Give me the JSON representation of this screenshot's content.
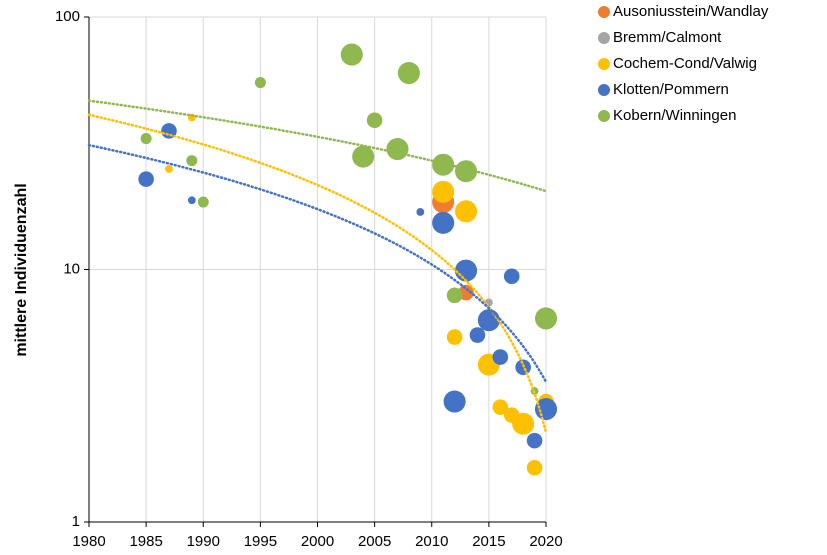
{
  "chart_data": {
    "type": "bubble",
    "y_label": "mittlere Individuenzahl",
    "log_y": true,
    "grid": true,
    "legend": "top-right",
    "xlim": [
      1980,
      2020
    ],
    "xticks": [
      1980,
      1985,
      1990,
      1995,
      2000,
      2005,
      2010,
      2015,
      2020
    ],
    "ylim": [
      1,
      100
    ],
    "yticks": [
      1,
      10,
      100
    ],
    "series": [
      {
        "name": "Ausoniusstein/Wandlay",
        "color": "#ed7d31",
        "trendline": false,
        "x": [
          2011,
          2013
        ],
        "values": [
          18.5,
          8.1
        ],
        "sizes": [
          8,
          4
        ]
      },
      {
        "name": "Bremm/Calmont",
        "color": "#a5a5a5",
        "trendline": false,
        "x": [
          2015
        ],
        "values": [
          7.4
        ],
        "sizes": [
          1
        ]
      },
      {
        "name": "Cochem-Cond/Valwig",
        "color": "#ffc000",
        "trendline": true,
        "x": [
          1987,
          1989,
          2011,
          2013,
          2012,
          2015,
          2016,
          2017,
          2018,
          2019,
          2020
        ],
        "values": [
          25,
          40,
          20.3,
          17,
          5.4,
          4.2,
          2.85,
          2.65,
          2.45,
          1.64,
          3.0
        ],
        "sizes": [
          1,
          1,
          8,
          8,
          4,
          8,
          4,
          4,
          8,
          4,
          4
        ]
      },
      {
        "name": "Klotten/Pommern",
        "color": "#4472c4",
        "trendline": true,
        "x": [
          1985,
          1987,
          1989,
          2009,
          2011,
          2013,
          2017,
          2014,
          2015,
          2016,
          2018,
          2012,
          2019,
          2020
        ],
        "values": [
          22.8,
          35.4,
          18.8,
          16.9,
          15.3,
          9.9,
          9.4,
          5.5,
          6.3,
          4.5,
          4.1,
          3.0,
          2.1,
          2.8
        ],
        "sizes": [
          4,
          4,
          1,
          1,
          8,
          8,
          4,
          4,
          8,
          4,
          4,
          8,
          4,
          8
        ]
      },
      {
        "name": "Kobern/Winningen",
        "color": "#8fb84f",
        "trendline": true,
        "x": [
          1985,
          1989,
          1990,
          1995,
          2003,
          2004,
          2005,
          2007,
          2008,
          2011,
          2013,
          2012,
          2020,
          2019
        ],
        "values": [
          33,
          27,
          18.5,
          55,
          71,
          28,
          39,
          30,
          60,
          26,
          24.5,
          7.9,
          6.4,
          3.3
        ],
        "sizes": [
          2,
          2,
          2,
          2,
          8,
          8,
          4,
          8,
          8,
          8,
          8,
          4,
          8,
          1
        ]
      }
    ]
  }
}
